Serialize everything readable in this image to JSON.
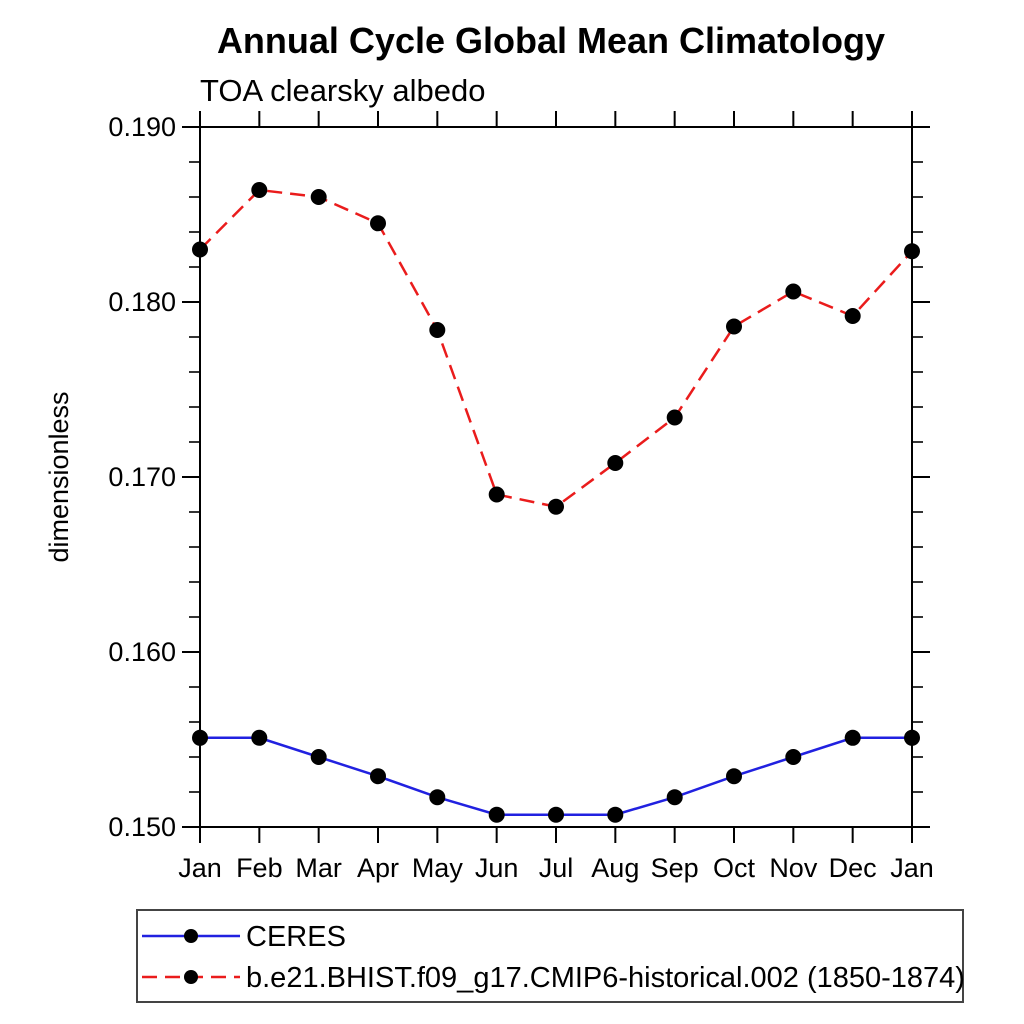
{
  "title": "Annual Cycle Global Mean Climatology",
  "subtitle": "TOA clearsky albedo",
  "ylabel": "dimensionless",
  "axis_color": "#000000",
  "marker_color": "#000000",
  "legend_border_color": "#444444",
  "chart_data": {
    "type": "line",
    "categories": [
      "Jan",
      "Feb",
      "Mar",
      "Apr",
      "May",
      "Jun",
      "Jul",
      "Aug",
      "Sep",
      "Oct",
      "Nov",
      "Dec",
      "Jan"
    ],
    "series": [
      {
        "name": "CERES",
        "color": "#2121e0",
        "line_style": "solid",
        "marker": "filled-circle",
        "values": [
          0.1551,
          0.1551,
          0.154,
          0.1529,
          0.1517,
          0.1507,
          0.1507,
          0.1507,
          0.1517,
          0.1529,
          0.154,
          0.1551,
          0.1551
        ]
      },
      {
        "name": "b.e21.BHIST.f09_g17.CMIP6-historical.002 (1850-1874)",
        "color": "#ea1c1c",
        "line_style": "dashed",
        "marker": "filled-circle",
        "values": [
          0.183,
          0.1864,
          0.186,
          0.1845,
          0.1784,
          0.169,
          0.1683,
          0.1708,
          0.1734,
          0.1786,
          0.1806,
          0.1792,
          0.1829
        ]
      }
    ],
    "ylim": [
      0.15,
      0.19
    ],
    "y_major_tick_labels": [
      "0.150",
      "0.160",
      "0.170",
      "0.180",
      "0.190"
    ],
    "y_minor_step": 0.002,
    "grid": false,
    "legend_position": "bottom-left"
  }
}
